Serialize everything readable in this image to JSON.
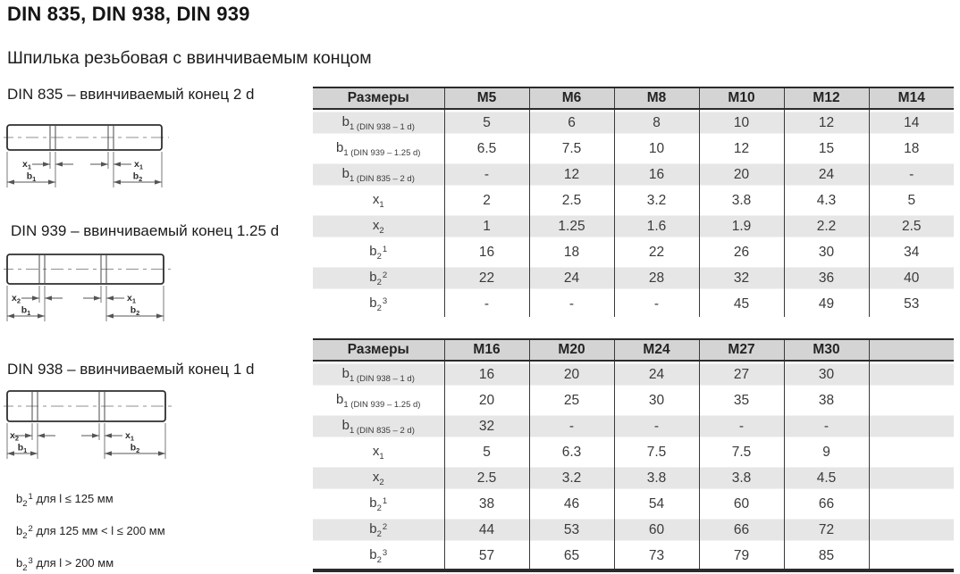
{
  "page": {
    "title": "DIN 835, DIN 938, DIN 939",
    "subtitle": "Шпилька резьбовая с ввинчиваемым концом"
  },
  "colors": {
    "header_bg": "#d4d4d4",
    "stripe_bg": "#e6e6e6",
    "border_dark": "#2b2b2b",
    "line": "#3a3a3a"
  },
  "drawings": [
    {
      "label": "DIN 835 – ввинчиваемый конец 2 d",
      "dims": {
        "left_x": {
          "base": "x",
          "sub": "1"
        },
        "right_x": {
          "base": "x",
          "sub": "1"
        },
        "left_b": {
          "base": "b",
          "sub": "1"
        },
        "right_b": {
          "base": "b",
          "sub": "2"
        }
      }
    },
    {
      "label": "DIN 939 – ввинчиваемый конец 1.25 d",
      "dims": {
        "left_x": {
          "base": "x",
          "sub": "2"
        },
        "right_x": {
          "base": "x",
          "sub": "1"
        },
        "left_b": {
          "base": "b",
          "sub": "1"
        },
        "right_b": {
          "base": "b",
          "sub": "2"
        }
      }
    },
    {
      "label": "DIN 938 – ввинчиваемый конец 1 d",
      "dims": {
        "left_x": {
          "base": "x",
          "sub": "2"
        },
        "right_x": {
          "base": "x",
          "sub": "1"
        },
        "left_b": {
          "base": "b",
          "sub": "1"
        },
        "right_b": {
          "base": "b",
          "sub": "2"
        }
      }
    }
  ],
  "footnotes": [
    {
      "label": {
        "base": "b",
        "sub": "2",
        "sup": "1"
      },
      "text": "для l ≤ 125 мм"
    },
    {
      "label": {
        "base": "b",
        "sub": "2",
        "sup": "2"
      },
      "text": "для 125 мм < l ≤ 200 мм"
    },
    {
      "label": {
        "base": "b",
        "sub": "2",
        "sup": "3"
      },
      "text": "для l > 200 мм"
    }
  ],
  "tables": [
    {
      "name": "sizes-m5-m14",
      "header": [
        "Размеры",
        "M5",
        "M6",
        "M8",
        "M10",
        "M12",
        "M14"
      ],
      "rows": [
        {
          "label": {
            "base": "b",
            "sub": "1 (DIN 938 – 1 d)"
          },
          "values": [
            "5",
            "6",
            "8",
            "10",
            "12",
            "14"
          ]
        },
        {
          "label": {
            "base": "b",
            "sub": "1 (DIN 939 – 1.25 d)"
          },
          "values": [
            "6.5",
            "7.5",
            "10",
            "12",
            "15",
            "18"
          ]
        },
        {
          "label": {
            "base": "b",
            "sub": "1 (DIN 835 – 2 d)"
          },
          "values": [
            "-",
            "12",
            "16",
            "20",
            "24",
            "-"
          ]
        },
        {
          "label": {
            "base": "x",
            "sub": "1"
          },
          "values": [
            "2",
            "2.5",
            "3.2",
            "3.8",
            "4.3",
            "5"
          ]
        },
        {
          "label": {
            "base": "x",
            "sub": "2"
          },
          "values": [
            "1",
            "1.25",
            "1.6",
            "1.9",
            "2.2",
            "2.5"
          ]
        },
        {
          "label": {
            "base": "b",
            "sub": "2",
            "sup": "1"
          },
          "values": [
            "16",
            "18",
            "22",
            "26",
            "30",
            "34"
          ]
        },
        {
          "label": {
            "base": "b",
            "sub": "2",
            "sup": "2"
          },
          "values": [
            "22",
            "24",
            "28",
            "32",
            "36",
            "40"
          ]
        },
        {
          "label": {
            "base": "b",
            "sub": "2",
            "sup": "3"
          },
          "values": [
            "-",
            "-",
            "-",
            "45",
            "49",
            "53"
          ]
        }
      ]
    },
    {
      "name": "sizes-m16-m30",
      "header": [
        "Размеры",
        "M16",
        "M20",
        "M24",
        "M27",
        "M30",
        ""
      ],
      "rows": [
        {
          "label": {
            "base": "b",
            "sub": "1 (DIN 938 – 1 d)"
          },
          "values": [
            "16",
            "20",
            "24",
            "27",
            "30",
            ""
          ]
        },
        {
          "label": {
            "base": "b",
            "sub": "1 (DIN 939 – 1.25 d)"
          },
          "values": [
            "20",
            "25",
            "30",
            "35",
            "38",
            ""
          ]
        },
        {
          "label": {
            "base": "b",
            "sub": "1 (DIN 835 – 2 d)"
          },
          "values": [
            "32",
            "-",
            "-",
            "-",
            "-",
            ""
          ]
        },
        {
          "label": {
            "base": "x",
            "sub": "1"
          },
          "values": [
            "5",
            "6.3",
            "7.5",
            "7.5",
            "9",
            ""
          ]
        },
        {
          "label": {
            "base": "x",
            "sub": "2"
          },
          "values": [
            "2.5",
            "3.2",
            "3.8",
            "3.8",
            "4.5",
            ""
          ]
        },
        {
          "label": {
            "base": "b",
            "sub": "2",
            "sup": "1"
          },
          "values": [
            "38",
            "46",
            "54",
            "60",
            "66",
            ""
          ]
        },
        {
          "label": {
            "base": "b",
            "sub": "2",
            "sup": "2"
          },
          "values": [
            "44",
            "53",
            "60",
            "66",
            "72",
            ""
          ]
        },
        {
          "label": {
            "base": "b",
            "sub": "2",
            "sup": "3"
          },
          "values": [
            "57",
            "65",
            "73",
            "79",
            "85",
            ""
          ]
        }
      ]
    }
  ]
}
